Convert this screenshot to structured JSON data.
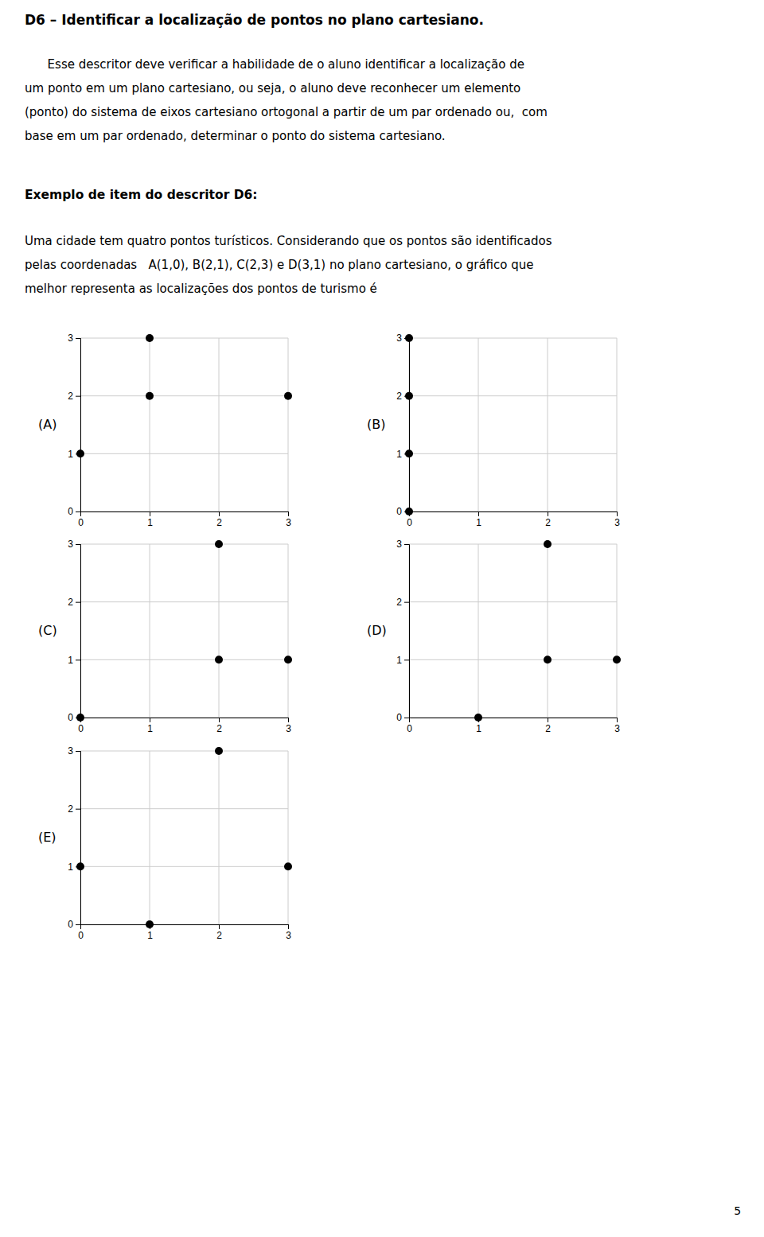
{
  "title": "D6 – Identificar a localização de pontos no plano cartesiano.",
  "body": [
    "      Esse descritor deve verificar a habilidade de o aluno identificar a localização de",
    "um ponto em um plano cartesiano, ou seja, o aluno deve reconhecer um elemento",
    "(ponto) do sistema de eixos cartesiano ortogonal a partir de um par ordenado ou,  com",
    "base em um par ordenado, determinar o ponto do sistema cartesiano."
  ],
  "example_title": "Exemplo de item do descritor D6:",
  "question": [
    "Uma cidade tem quatro pontos turísticos. Considerando que os pontos são identificados",
    "pelas coordenadas   A(1,0), B(2,1), C(2,3) e D(3,1) no plano cartesiano, o gráfico que",
    "melhor representa as localizações dos pontos de turismo é"
  ],
  "page_number": "5",
  "chart_data": [
    {
      "type": "scatter",
      "title": "(A)",
      "x": [
        0,
        1,
        1,
        3
      ],
      "values": [
        1,
        3,
        2,
        2
      ],
      "color": "#000000",
      "xlim": [
        0,
        3
      ],
      "ylim": [
        0,
        3
      ],
      "xticks": [
        0,
        1,
        2,
        3
      ],
      "yticks": [
        0,
        1,
        2,
        3
      ],
      "grid": true
    },
    {
      "type": "scatter",
      "title": "(B)",
      "x": [
        0,
        0,
        0,
        0
      ],
      "values": [
        3,
        2,
        1,
        0
      ],
      "color": "#000000",
      "xlim": [
        0,
        3
      ],
      "ylim": [
        0,
        3
      ],
      "xticks": [
        0,
        1,
        2,
        3
      ],
      "yticks": [
        0,
        1,
        2,
        3
      ],
      "grid": true
    },
    {
      "type": "scatter",
      "title": "(C)",
      "x": [
        0,
        2,
        2,
        3
      ],
      "values": [
        0,
        3,
        1,
        1
      ],
      "color": "#000000",
      "xlim": [
        0,
        3
      ],
      "ylim": [
        0,
        3
      ],
      "xticks": [
        0,
        1,
        2,
        3
      ],
      "yticks": [
        0,
        1,
        2,
        3
      ],
      "grid": true
    },
    {
      "type": "scatter",
      "title": "(D)",
      "x": [
        1,
        2,
        2,
        3
      ],
      "values": [
        0,
        3,
        1,
        1
      ],
      "color": "#000000",
      "xlim": [
        0,
        3
      ],
      "ylim": [
        0,
        3
      ],
      "xticks": [
        0,
        1,
        2,
        3
      ],
      "yticks": [
        0,
        1,
        2,
        3
      ],
      "grid": true
    },
    {
      "type": "scatter",
      "title": "(E)",
      "x": [
        0,
        1,
        2,
        3
      ],
      "values": [
        1,
        0,
        3,
        1
      ],
      "color": "#000000",
      "xlim": [
        0,
        3
      ],
      "ylim": [
        0,
        3
      ],
      "xticks": [
        0,
        1,
        2,
        3
      ],
      "yticks": [
        0,
        1,
        2,
        3
      ],
      "grid": true
    }
  ]
}
